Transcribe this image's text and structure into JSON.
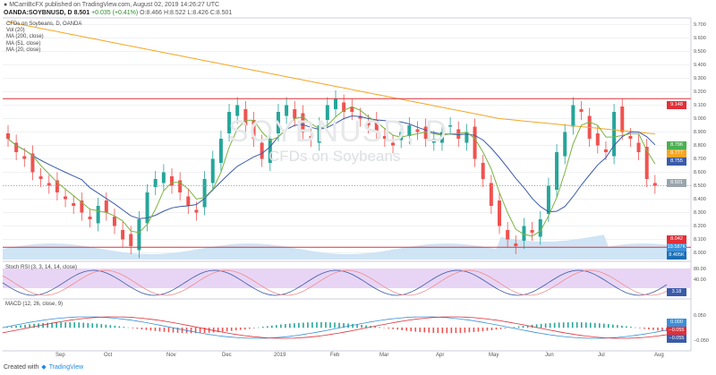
{
  "header": {
    "line1": "MCarriBcFX published on TradingView.com, August 02, 2019 14:26:27 UTC",
    "symbol": "OANDA:SOYBNUSD, D",
    "last": "8.501",
    "change": "+0.035 (+0.41%)",
    "ohlc": "O:8.466 H:8.522 L:8.426 C:8.501"
  },
  "legend": {
    "title": "CFDs on Soybeans, D, OANDA",
    "vol": "Vol (20)",
    "ma200": "MA (200, close)",
    "ma51": "MA (51, close)",
    "ma20": "MA (20, close)"
  },
  "watermark": {
    "symbol": "SOYBNUSD, D",
    "name": "CFDs on Soybeans"
  },
  "panes": {
    "stoch_label": "Stoch RSI (3, 3, 14, 14, close)",
    "macd_label": "MACD (12, 26, close, 9)"
  },
  "price_axis": [
    "9.700",
    "9.600",
    "9.500",
    "9.400",
    "9.300",
    "9.200",
    "9.100",
    "9.000",
    "8.900",
    "8.800",
    "8.700",
    "8.600",
    "8.500",
    "8.400",
    "8.300",
    "8.200",
    "8.100",
    "8.000"
  ],
  "price_tags": [
    {
      "text": "9.148",
      "color": "#e0303a",
      "value": 9.148
    },
    {
      "text": "8.796",
      "color": "#4caf50",
      "value": 8.796
    },
    {
      "text": "8.777",
      "color": "#f5a623",
      "value": 8.777
    },
    {
      "text": "8.755",
      "color": "#3b5ba9",
      "value": 8.755
    },
    {
      "text": "8.501",
      "color": "#9aa5ac",
      "value": 8.501
    },
    {
      "text": "8.042",
      "color": "#e0303a",
      "value": 8.042
    }
  ],
  "volume_tags": [
    {
      "text": "19.587K",
      "color": "#3a8fd9"
    },
    {
      "text": "8.405K",
      "color": "#1b6fb5"
    }
  ],
  "stoch_axis": [
    "80.00",
    "40.00"
  ],
  "stoch_tag": {
    "text": "3.18",
    "color": "#3b5ba9"
  },
  "macd_tags": [
    {
      "text": "0.000",
      "color": "#3a8fd9"
    },
    {
      "text": "−0.055",
      "color": "#e0303a"
    },
    {
      "text": "−0.055",
      "color": "#3b5ba9"
    }
  ],
  "macd_axis": [
    "0.050",
    "−0.050"
  ],
  "dates": [
    "Sep",
    "Oct",
    "Nov",
    "Dec",
    "2019",
    "Feb",
    "Mar",
    "Apr",
    "May",
    "Jun",
    "Jul",
    "Aug"
  ],
  "footer": "Created with",
  "footer_brand": "TradingView",
  "chart_data": {
    "type": "candlestick",
    "symbol": "OANDA:SOYBNUSD, D",
    "horizontal_levels": [
      9.148,
      8.042
    ],
    "ylim": [
      7.95,
      9.75
    ],
    "close_path": [
      8.85,
      8.75,
      8.7,
      8.6,
      8.55,
      8.5,
      8.45,
      8.4,
      8.35,
      8.3,
      8.25,
      8.35,
      8.3,
      8.2,
      8.1,
      8.05,
      8.25,
      8.45,
      8.55,
      8.6,
      8.5,
      8.45,
      8.35,
      8.3,
      8.55,
      8.7,
      8.85,
      9.05,
      9.1,
      8.95,
      8.85,
      8.7,
      8.85,
      9.05,
      9.1,
      9.0,
      8.9,
      8.85,
      8.95,
      9.1,
      9.15,
      9.05,
      9.05,
      9.0,
      8.95,
      8.9,
      8.85,
      8.8,
      8.9,
      8.95,
      8.9,
      8.85,
      8.85,
      8.9,
      8.95,
      8.85,
      8.9,
      8.7,
      8.55,
      8.35,
      8.2,
      8.1,
      8.05,
      8.2,
      8.15,
      8.25,
      8.5,
      8.75,
      8.9,
      9.1,
      9.05,
      8.85,
      8.8,
      8.75,
      9.05,
      8.9,
      8.85,
      8.75,
      8.55,
      8.5
    ]
  }
}
